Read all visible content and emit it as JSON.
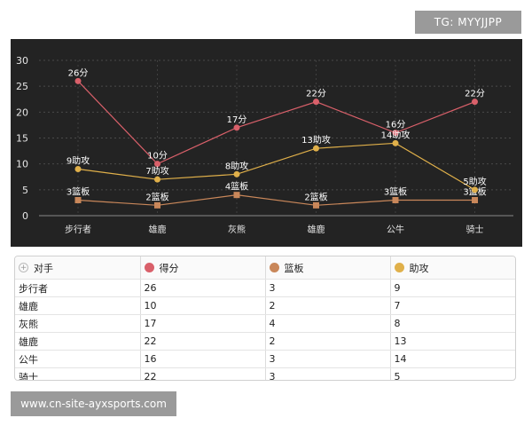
{
  "watermark_top": "TG: MYYJJPP",
  "watermark_bottom": "www.cn-site-ayxsports.com",
  "colors": {
    "background": "#232323",
    "points": "#d9606a",
    "rebounds": "#c9875a",
    "assists": "#e0b04a"
  },
  "chart_data": {
    "type": "line",
    "categories": [
      "步行者",
      "雄鹿",
      "灰熊",
      "雄鹿",
      "公牛",
      "骑士"
    ],
    "ylim": [
      0,
      30
    ],
    "yticks": [
      0,
      5,
      10,
      15,
      20,
      25,
      30
    ],
    "grid": true,
    "series": [
      {
        "name": "得分",
        "color": "#d9606a",
        "marker": "circle",
        "values": [
          26,
          10,
          17,
          22,
          16,
          22
        ],
        "labels": [
          "26分",
          "10分",
          "17分",
          "22分",
          "16分",
          "22分"
        ]
      },
      {
        "name": "篮板",
        "color": "#c9875a",
        "marker": "square",
        "values": [
          3,
          2,
          4,
          2,
          3,
          3
        ],
        "labels": [
          "3篮板",
          "2篮板",
          "4篮板",
          "2篮板",
          "3篮板",
          "3篮板"
        ]
      },
      {
        "name": "助攻",
        "color": "#e0b04a",
        "marker": "circle",
        "values": [
          9,
          7,
          8,
          13,
          14,
          5
        ],
        "labels": [
          "9助攻",
          "7助攻",
          "8助攻",
          "13助攻",
          "14助攻",
          "5助攻"
        ]
      }
    ]
  },
  "table": {
    "headers": [
      "对手",
      "得分",
      "篮板",
      "助攻"
    ],
    "rows": [
      [
        "步行者",
        "26",
        "3",
        "9"
      ],
      [
        "雄鹿",
        "10",
        "2",
        "7"
      ],
      [
        "灰熊",
        "17",
        "4",
        "8"
      ],
      [
        "雄鹿",
        "22",
        "2",
        "13"
      ],
      [
        "公牛",
        "16",
        "3",
        "14"
      ],
      [
        "骑士",
        "22",
        "3",
        "5"
      ]
    ]
  }
}
